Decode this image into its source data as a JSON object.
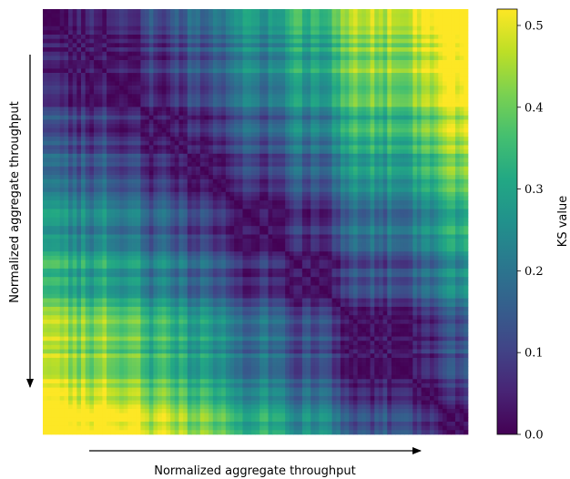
{
  "chart_data": {
    "type": "heatmap",
    "title": "",
    "xlabel": "Normalized aggregate throughput",
    "ylabel": "Normalized aggregate throughput",
    "colorbar_label": "KS value",
    "colormap": "viridis",
    "value_range": [
      0.0,
      0.52
    ],
    "colorbar_ticks": [
      "0.0",
      "0.1",
      "0.2",
      "0.3",
      "0.4",
      "0.5"
    ],
    "colorbar_tick_values": [
      0.0,
      0.1,
      0.2,
      0.3,
      0.4,
      0.5
    ],
    "matrix_size": 100,
    "diagonal_value": 0.0,
    "max_value": 0.52,
    "x_direction": "increasing left to right",
    "y_direction": "increasing top to bottom",
    "axis_ticks_shown": false,
    "grid": false
  }
}
